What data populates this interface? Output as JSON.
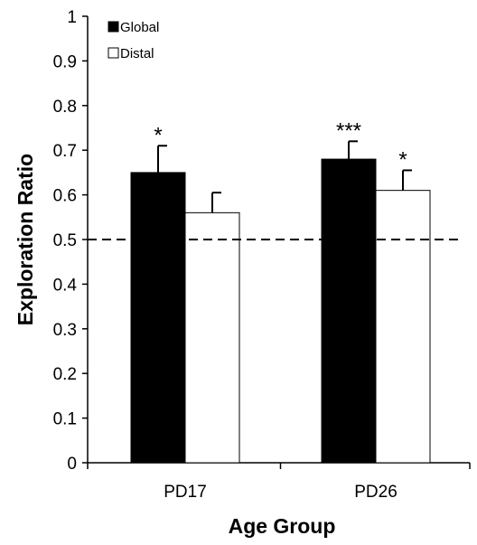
{
  "chart_data": {
    "type": "bar",
    "title": "",
    "xlabel": "Age Group",
    "ylabel": "Exploration Ratio",
    "categories": [
      "PD17",
      "PD26"
    ],
    "series": [
      {
        "name": "Global",
        "values": [
          0.65,
          0.68
        ],
        "errors": [
          0.06,
          0.04
        ],
        "color": "#000000"
      },
      {
        "name": "Distal",
        "values": [
          0.56,
          0.61
        ],
        "errors": [
          0.045,
          0.045
        ],
        "color": "#ffffff"
      }
    ],
    "ylim": [
      0,
      1
    ],
    "yticks": [
      0,
      0.1,
      0.2,
      0.3,
      0.4,
      0.5,
      0.6,
      0.7,
      0.8,
      0.9,
      1
    ],
    "ytick_labels": [
      "0",
      "0.1",
      "0.2",
      "0.3",
      "0.4",
      "0.5",
      "0.6",
      "0.7",
      "0.8",
      "0.9",
      "1"
    ],
    "reference_line": {
      "y": 0.5,
      "style": "dashed"
    },
    "annotations": [
      {
        "category": "PD17",
        "series": "Global",
        "text": "*"
      },
      {
        "category": "PD26",
        "series": "Global",
        "text": "***"
      },
      {
        "category": "PD26",
        "series": "Distal",
        "text": "*"
      }
    ],
    "legend": {
      "placement": "top-left"
    },
    "grid": false
  }
}
